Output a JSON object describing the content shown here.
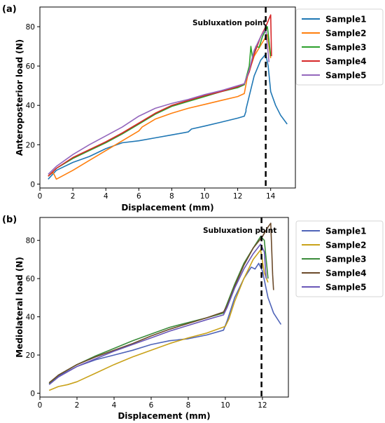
{
  "chart_data": [
    {
      "type": "line",
      "panel_label": "(a)",
      "xlabel": "Displacement (mm)",
      "ylabel": "Anteroposterior load (N)",
      "xlim": [
        0,
        15.5
      ],
      "ylim": [
        -2,
        90
      ],
      "xticks": [
        0,
        2,
        4,
        6,
        8,
        10,
        12,
        14
      ],
      "yticks": [
        0,
        20,
        40,
        60,
        80
      ],
      "annotation": "Subluxation point",
      "vline_x": 13.7,
      "legend_position": "outside-right",
      "series": [
        {
          "name": "Sample1",
          "color": "#1f77b4",
          "x": [
            0.5,
            1.0,
            2.0,
            3.0,
            4.0,
            5.0,
            6.0,
            7.0,
            8.0,
            9.0,
            9.2,
            10.0,
            11.0,
            12.0,
            12.4,
            12.5,
            12.5,
            13.0,
            13.4,
            13.7,
            13.85,
            14.0,
            14.3,
            14.6,
            15.0
          ],
          "y": [
            2.5,
            7,
            11,
            14,
            18,
            21,
            22,
            23.5,
            25,
            26.5,
            28,
            29.5,
            31.5,
            33.5,
            34.5,
            37,
            38,
            55,
            63,
            66,
            60,
            47,
            40,
            35,
            30.5
          ]
        },
        {
          "name": "Sample2",
          "color": "#ff7f0e",
          "x": [
            0.5,
            0.8,
            1.0,
            2.0,
            3.0,
            4.0,
            5.0,
            6.0,
            6.2,
            7.0,
            8.0,
            9.0,
            10.0,
            11.0,
            12.0,
            12.4,
            12.6,
            13.0,
            13.5,
            13.8,
            14.0
          ],
          "y": [
            4,
            6,
            2.5,
            7,
            12,
            17,
            22,
            27,
            29,
            33,
            36,
            38.5,
            40.5,
            42.5,
            44.5,
            46,
            55,
            65,
            72,
            76,
            64
          ]
        },
        {
          "name": "Sample3",
          "color": "#2ca02c",
          "x": [
            0.5,
            1.0,
            2.0,
            3.0,
            4.0,
            5.0,
            6.0,
            7.0,
            8.0,
            9.0,
            10.0,
            11.0,
            12.0,
            12.4,
            12.7,
            12.8,
            12.9,
            13.1,
            13.3,
            13.5,
            13.8,
            14.0
          ],
          "y": [
            4,
            8,
            13,
            17,
            21,
            25.5,
            30.5,
            35.5,
            39.5,
            42,
            44.5,
            47,
            49,
            50.5,
            60,
            70,
            64,
            70,
            69.5,
            75,
            80,
            65
          ]
        },
        {
          "name": "Sample4",
          "color": "#d62728",
          "x": [
            0.5,
            1.0,
            2.0,
            3.0,
            4.0,
            5.0,
            6.0,
            7.0,
            8.0,
            9.0,
            10.0,
            11.0,
            12.0,
            12.4,
            12.7,
            13.0,
            13.4,
            13.7,
            14.0,
            14.05
          ],
          "y": [
            4,
            8,
            13.5,
            17.5,
            21.5,
            26,
            31,
            36,
            40,
            42.5,
            45,
            47,
            49.5,
            51,
            57,
            66,
            75,
            80,
            86,
            65
          ]
        },
        {
          "name": "Sample5",
          "color": "#9467bd",
          "x": [
            0.5,
            1.0,
            2.0,
            3.0,
            4.0,
            5.0,
            6.0,
            7.0,
            8.0,
            9.0,
            10.0,
            11.0,
            12.0,
            12.4,
            12.7,
            13.0,
            13.4,
            13.7,
            13.9
          ],
          "y": [
            5,
            9,
            15,
            20,
            24.5,
            29,
            34.5,
            38.5,
            41,
            43,
            45.5,
            47.5,
            50,
            51,
            58,
            68,
            75,
            79,
            62
          ]
        }
      ]
    },
    {
      "type": "line",
      "panel_label": "(b)",
      "xlabel": "Displacement (mm)",
      "ylabel": "Mediolateral load (N)",
      "xlim": [
        0,
        13.4
      ],
      "ylim": [
        -2,
        92
      ],
      "xticks": [
        0,
        2,
        4,
        6,
        8,
        10,
        12
      ],
      "yticks": [
        0,
        20,
        40,
        60,
        80
      ],
      "annotation": "Subluxation point",
      "vline_x": 11.95,
      "legend_position": "outside-right",
      "series": [
        {
          "name": "Sample1",
          "color": "#4f64b8",
          "x": [
            0.5,
            1.0,
            2.0,
            3.0,
            4.0,
            5.0,
            6.0,
            7.0,
            8.0,
            9.0,
            9.9,
            10.1,
            10.5,
            11.0,
            11.4,
            11.6,
            11.8,
            12.0,
            12.3,
            12.6,
            13.0
          ],
          "y": [
            5,
            9,
            14,
            17.5,
            20,
            22.5,
            25.5,
            27.5,
            28.5,
            30.5,
            33,
            38,
            50,
            60,
            66,
            65,
            68,
            64,
            50,
            42,
            36
          ]
        },
        {
          "name": "Sample2",
          "color": "#c9a21a",
          "x": [
            0.5,
            1.0,
            1.5,
            2.0,
            3.0,
            4.0,
            5.0,
            6.0,
            7.0,
            8.0,
            9.0,
            10.0,
            10.2,
            10.5,
            11.0,
            11.5,
            11.9,
            12.1,
            12.3
          ],
          "y": [
            1.5,
            3.5,
            4.5,
            6,
            10.5,
            15,
            19,
            22.5,
            26,
            29,
            31.5,
            35,
            39,
            48,
            60,
            70,
            75,
            63,
            58
          ]
        },
        {
          "name": "Sample3",
          "color": "#3a8b3a",
          "x": [
            0.5,
            1.0,
            2.0,
            3.0,
            4.0,
            5.0,
            6.0,
            7.0,
            8.0,
            9.0,
            9.9,
            10.1,
            10.5,
            11.0,
            11.5,
            11.9,
            12.1,
            12.3
          ],
          "y": [
            5,
            9.5,
            15,
            19.5,
            23.5,
            27.5,
            31,
            34.5,
            37,
            39.5,
            42,
            47,
            57,
            68,
            76,
            82,
            80,
            60
          ]
        },
        {
          "name": "Sample4",
          "color": "#6b4a2a",
          "x": [
            0.5,
            1.0,
            2.0,
            3.0,
            4.0,
            5.0,
            6.0,
            7.0,
            8.0,
            9.0,
            9.9,
            10.1,
            10.5,
            11.0,
            11.5,
            12.0,
            12.3,
            12.45,
            12.55,
            12.6
          ],
          "y": [
            5.5,
            9.5,
            15,
            19,
            22.5,
            26,
            30,
            33.5,
            36.5,
            39.5,
            42.5,
            46,
            56,
            67,
            76,
            82,
            87,
            89,
            62,
            54
          ]
        },
        {
          "name": "Sample5",
          "color": "#6a57b8",
          "x": [
            0.5,
            1.0,
            2.0,
            3.0,
            4.0,
            5.0,
            6.0,
            7.0,
            8.0,
            9.0,
            9.9,
            10.1,
            10.5,
            11.0,
            11.5,
            11.9,
            12.1,
            12.2
          ],
          "y": [
            4.5,
            8.5,
            14,
            18,
            22,
            25.5,
            29,
            32.5,
            35.5,
            38.5,
            41,
            45,
            55,
            65,
            73,
            78,
            74,
            60
          ]
        }
      ]
    }
  ]
}
